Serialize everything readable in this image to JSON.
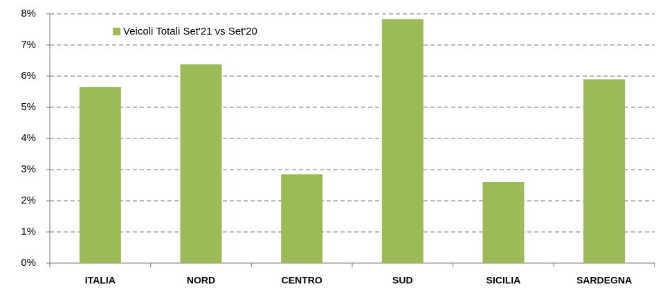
{
  "chart_data": {
    "type": "bar",
    "categories": [
      "ITALIA",
      "NORD",
      "CENTRO",
      "SUD",
      "SICILIA",
      "SARDEGNA"
    ],
    "series": [
      {
        "name": "Veicoli Totali Set'21 vs Set'20",
        "color": "#9bbb59",
        "values": [
          5.65,
          6.38,
          2.85,
          7.83,
          2.6,
          5.9
        ]
      }
    ],
    "ylim": [
      0,
      8
    ],
    "yticks": [
      {
        "value": 0,
        "label": "0%"
      },
      {
        "value": 1,
        "label": "1%"
      },
      {
        "value": 2,
        "label": "2%"
      },
      {
        "value": 3,
        "label": "3%"
      },
      {
        "value": 4,
        "label": "4%"
      },
      {
        "value": 5,
        "label": "5%"
      },
      {
        "value": 6,
        "label": "6%"
      },
      {
        "value": 7,
        "label": "7%"
      },
      {
        "value": 8,
        "label": "8%"
      }
    ],
    "grid": true,
    "legend": "top-left"
  }
}
